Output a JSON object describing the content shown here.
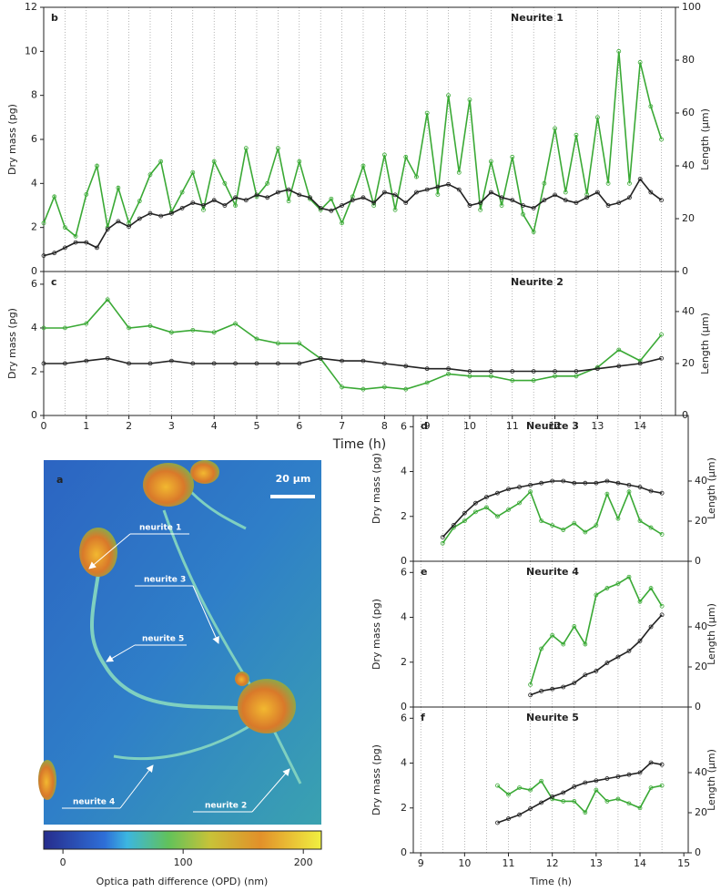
{
  "chart_data": [
    {
      "type": "line",
      "label": "b",
      "title": "Neurite 1",
      "ylabel": "Dry mass  (pg)",
      "y2label": "Length (µm)",
      "xlim": [
        0,
        14.83
      ],
      "ylim": [
        0,
        12
      ],
      "yticks": [
        0,
        2,
        4,
        6,
        8,
        10,
        12
      ],
      "y2lim": [
        0,
        100
      ],
      "y2ticks": [
        0,
        20,
        40,
        60,
        80,
        100
      ],
      "vlines": [
        0.5,
        1,
        1.5,
        2,
        2.5,
        3,
        3.5,
        4,
        4.5,
        5,
        5.5,
        6,
        6.5,
        7,
        7.5,
        8,
        8.5,
        9,
        9.5,
        10,
        10.5,
        11,
        11.5,
        12,
        12.5,
        13,
        13.5,
        14,
        14.5
      ],
      "series": [
        {
          "color": "#3aa935",
          "axis": "y",
          "x": [
            0,
            0.25,
            0.5,
            0.75,
            1,
            1.25,
            1.5,
            1.75,
            2,
            2.25,
            2.5,
            2.75,
            3,
            3.25,
            3.5,
            3.75,
            4,
            4.25,
            4.5,
            4.75,
            5,
            5.25,
            5.5,
            5.75,
            6,
            6.25,
            6.5,
            6.75,
            7,
            7.25,
            7.5,
            7.75,
            8,
            8.25,
            8.5,
            8.75,
            9,
            9.25,
            9.5,
            9.75,
            10,
            10.25,
            10.5,
            10.75,
            11,
            11.25,
            11.5,
            11.75,
            12,
            12.25,
            12.5,
            12.75,
            13,
            13.25,
            13.5,
            13.75,
            14,
            14.25,
            14.5
          ],
          "values": [
            2.2,
            3.4,
            2.0,
            1.6,
            3.5,
            4.8,
            2.0,
            3.8,
            2.2,
            3.2,
            4.4,
            5.0,
            2.7,
            3.6,
            4.5,
            2.8,
            5.0,
            4.0,
            3.0,
            5.6,
            3.4,
            4.0,
            5.6,
            3.2,
            5.0,
            3.3,
            2.8,
            3.3,
            2.2,
            3.4,
            4.8,
            3.0,
            5.3,
            2.8,
            5.2,
            4.3,
            7.2,
            3.5,
            8.0,
            4.5,
            7.8,
            2.8,
            5.0,
            3.0,
            5.2,
            2.6,
            1.8,
            4.0,
            6.5,
            3.6,
            6.2,
            3.5,
            7.0,
            4.0,
            10.0,
            4.0,
            9.5,
            7.5,
            6.0
          ]
        },
        {
          "color": "#222222",
          "axis": "y2",
          "x": [
            0,
            0.25,
            0.5,
            0.75,
            1,
            1.25,
            1.5,
            1.75,
            2,
            2.25,
            2.5,
            2.75,
            3,
            3.25,
            3.5,
            3.75,
            4,
            4.25,
            4.5,
            4.75,
            5,
            5.25,
            5.5,
            5.75,
            6,
            6.25,
            6.5,
            6.75,
            7,
            7.25,
            7.5,
            7.75,
            8,
            8.25,
            8.5,
            8.75,
            9,
            9.25,
            9.5,
            9.75,
            10,
            10.25,
            10.5,
            10.75,
            11,
            11.25,
            11.5,
            11.75,
            12,
            12.25,
            12.5,
            12.75,
            13,
            13.25,
            13.5,
            13.75,
            14,
            14.25,
            14.5
          ],
          "values": [
            6,
            7,
            9,
            11,
            11,
            9,
            16,
            19,
            17,
            20,
            22,
            21,
            22,
            24,
            26,
            25,
            27,
            25,
            28,
            27,
            29,
            28,
            30,
            31,
            29,
            28,
            24,
            23,
            25,
            27,
            28,
            26,
            30,
            29,
            26,
            30,
            31,
            32,
            33,
            31,
            25,
            26,
            30,
            28,
            27,
            25,
            24,
            27,
            29,
            27,
            26,
            28,
            30,
            25,
            26,
            28,
            35,
            30,
            27
          ]
        }
      ]
    },
    {
      "type": "line",
      "label": "c",
      "title": "Neurite 2",
      "ylabel": "Dry mass  (pg)",
      "y2label": "Length (µm)",
      "xlabel": "Time  (h)",
      "xlim": [
        0,
        14.83
      ],
      "xticks": [
        0,
        1,
        2,
        3,
        4,
        5,
        6,
        7,
        8,
        9,
        10,
        11,
        12,
        13,
        14
      ],
      "ylim": [
        0,
        6.58
      ],
      "yticks": [
        0,
        2,
        4,
        6
      ],
      "y2lim": [
        0,
        55.4
      ],
      "y2ticks": [
        0,
        20,
        40
      ],
      "vlines": [
        0.5,
        1,
        1.5,
        2,
        2.5,
        3,
        3.5,
        4,
        4.5,
        5,
        5.5,
        6,
        6.5,
        7,
        7.5,
        8,
        8.5,
        9,
        9.5,
        10,
        10.5,
        11,
        11.5,
        12,
        12.5,
        13,
        13.5,
        14,
        14.5
      ],
      "series": [
        {
          "color": "#3aa935",
          "axis": "y",
          "x": [
            0,
            0.5,
            1,
            1.5,
            2,
            2.5,
            3,
            3.5,
            4,
            4.5,
            5,
            5.5,
            6,
            6.5,
            7,
            7.5,
            8,
            8.5,
            9,
            9.5,
            10,
            10.5,
            11,
            11.5,
            12,
            12.5,
            13,
            13.5,
            14,
            14.5
          ],
          "values": [
            4.0,
            4.0,
            4.2,
            5.3,
            4.0,
            4.1,
            3.8,
            3.9,
            3.8,
            4.2,
            3.5,
            3.3,
            3.3,
            2.6,
            1.3,
            1.2,
            1.3,
            1.2,
            1.5,
            1.9,
            1.8,
            1.8,
            1.6,
            1.6,
            1.8,
            1.8,
            2.2,
            3.0,
            2.5,
            3.7
          ]
        },
        {
          "color": "#222222",
          "axis": "y2",
          "x": [
            0,
            0.5,
            1,
            1.5,
            2,
            2.5,
            3,
            3.5,
            4,
            4.5,
            5,
            5.5,
            6,
            6.5,
            7,
            7.5,
            8,
            8.5,
            9,
            9.5,
            10,
            10.5,
            11,
            11.5,
            12,
            12.5,
            13,
            13.5,
            14,
            14.5
          ],
          "values": [
            20,
            20,
            21,
            22,
            20,
            20,
            21,
            20,
            20,
            20,
            20,
            20,
            20,
            22,
            21,
            21,
            20,
            19,
            18,
            18,
            17,
            17,
            17,
            17,
            17,
            17,
            18,
            19,
            20,
            22
          ]
        }
      ]
    },
    {
      "type": "line",
      "label": "d",
      "title": "Neurite 3",
      "ylabel": "Dry mass  (pg)",
      "y2label": "Length (µm)",
      "xlim": [
        8.83,
        15.1
      ],
      "ylim": [
        0,
        6.5
      ],
      "yticks": [
        0,
        2,
        4,
        6
      ],
      "y2lim": [
        0,
        72.7
      ],
      "y2ticks": [
        0,
        20,
        40
      ],
      "vlines": [
        9,
        9.5,
        10,
        10.5,
        11,
        11.5,
        12,
        12.5,
        13,
        13.5,
        14,
        14.5
      ],
      "series": [
        {
          "color": "#3aa935",
          "axis": "y",
          "x": [
            9.5,
            9.75,
            10,
            10.25,
            10.5,
            10.75,
            11,
            11.25,
            11.5,
            11.75,
            12,
            12.25,
            12.5,
            12.75,
            13,
            13.25,
            13.5,
            13.75,
            14,
            14.25,
            14.5
          ],
          "values": [
            0.8,
            1.5,
            1.8,
            2.2,
            2.4,
            2.0,
            2.3,
            2.6,
            3.1,
            1.8,
            1.6,
            1.4,
            1.7,
            1.3,
            1.6,
            3.0,
            1.9,
            3.1,
            1.8,
            1.5,
            1.2
          ]
        },
        {
          "color": "#222222",
          "axis": "y2",
          "x": [
            9.5,
            9.75,
            10,
            10.25,
            10.5,
            10.75,
            11,
            11.25,
            11.5,
            11.75,
            12,
            12.25,
            12.5,
            12.75,
            13,
            13.25,
            13.5,
            13.75,
            14,
            14.25,
            14.5
          ],
          "values": [
            12,
            18,
            24,
            29,
            32,
            34,
            36,
            37,
            38,
            39,
            40,
            40,
            39,
            39,
            39,
            40,
            39,
            38,
            37,
            35,
            34
          ]
        }
      ]
    },
    {
      "type": "line",
      "label": "e",
      "title": "Neurite 4",
      "ylabel": "Dry mass  (pg)",
      "y2label": "Length (µm)",
      "xlim": [
        8.83,
        15.1
      ],
      "ylim": [
        0,
        6.5
      ],
      "yticks": [
        0,
        2,
        4,
        6
      ],
      "y2lim": [
        0,
        72.7
      ],
      "y2ticks": [
        0,
        20,
        40
      ],
      "vlines": [
        9,
        9.5,
        10,
        10.5,
        11,
        11.5,
        12,
        12.5,
        13,
        13.5,
        14,
        14.5
      ],
      "series": [
        {
          "color": "#3aa935",
          "axis": "y",
          "x": [
            11.5,
            11.75,
            12,
            12.25,
            12.5,
            12.75,
            13,
            13.25,
            13.5,
            13.75,
            14,
            14.25,
            14.5
          ],
          "values": [
            1.0,
            2.6,
            3.2,
            2.8,
            3.6,
            2.8,
            5.0,
            5.3,
            5.5,
            5.8,
            4.7,
            5.3,
            4.5
          ]
        },
        {
          "color": "#222222",
          "axis": "y2",
          "x": [
            11.5,
            11.75,
            12,
            12.25,
            12.5,
            12.75,
            13,
            13.25,
            13.5,
            13.75,
            14,
            14.25,
            14.5
          ],
          "values": [
            6,
            8,
            9,
            10,
            12,
            16,
            18,
            22,
            25,
            28,
            33,
            40,
            46
          ]
        }
      ]
    },
    {
      "type": "line",
      "label": "f",
      "title": "Neurite 5",
      "ylabel": "Dry mass  (pg)",
      "y2label": "Length (µm)",
      "xlabel": "Time (h)",
      "xlim": [
        8.83,
        15.1
      ],
      "xticks": [
        9,
        10,
        11,
        12,
        13,
        14,
        15
      ],
      "ylim": [
        0,
        6.5
      ],
      "yticks": [
        0,
        2,
        4,
        6
      ],
      "y2lim": [
        0,
        72.7
      ],
      "y2ticks": [
        0,
        20,
        40
      ],
      "vlines": [
        9,
        9.5,
        10,
        10.5,
        11,
        11.5,
        12,
        12.5,
        13,
        13.5,
        14,
        14.5
      ],
      "series": [
        {
          "color": "#3aa935",
          "axis": "y",
          "x": [
            10.75,
            11,
            11.25,
            11.5,
            11.75,
            12,
            12.25,
            12.5,
            12.75,
            13,
            13.25,
            13.5,
            13.75,
            14,
            14.25,
            14.5
          ],
          "values": [
            3.0,
            2.6,
            2.9,
            2.8,
            3.2,
            2.4,
            2.3,
            2.3,
            1.8,
            2.8,
            2.3,
            2.4,
            2.2,
            2.0,
            2.9,
            3.0
          ]
        },
        {
          "color": "#222222",
          "axis": "y2",
          "x": [
            10.75,
            11,
            11.25,
            11.5,
            11.75,
            12,
            12.25,
            12.5,
            12.75,
            13,
            13.25,
            13.5,
            13.75,
            14,
            14.25,
            14.5
          ],
          "values": [
            15,
            17,
            19,
            22,
            25,
            28,
            30,
            33,
            35,
            36,
            37,
            38,
            39,
            40,
            45,
            44
          ]
        }
      ]
    }
  ],
  "image_panel": {
    "label": "a",
    "scale_bar": "20 µm",
    "annotations": [
      "neurite 1",
      "neurite 3",
      "neurite 5",
      "neurite 4",
      "neurite 2"
    ],
    "colorbar": {
      "xlim": [
        -16,
        215
      ],
      "xticks": [
        0,
        100,
        200
      ],
      "label": "Optica path difference (OPD) (nm)"
    }
  }
}
